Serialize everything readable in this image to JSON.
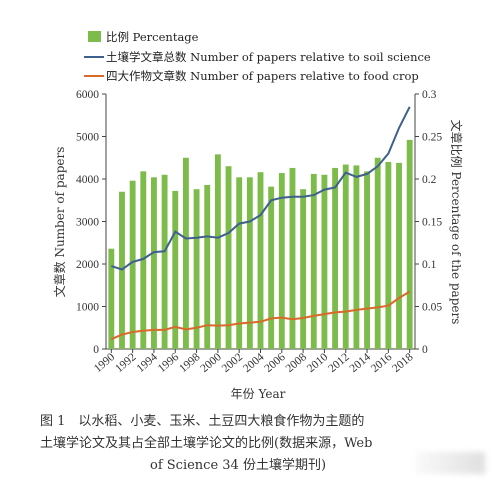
{
  "chart_data": {
    "type": "bar+line",
    "x": [
      1990,
      1991,
      1992,
      1993,
      1994,
      1995,
      1996,
      1997,
      1998,
      1999,
      2000,
      2001,
      2002,
      2003,
      2004,
      2005,
      2006,
      2007,
      2008,
      2009,
      2010,
      2011,
      2012,
      2013,
      2014,
      2015,
      2016,
      2017,
      2018
    ],
    "x_tick_labels": [
      "1990",
      "1992",
      "1994",
      "1996",
      "1998",
      "2000",
      "2002",
      "2004",
      "2006",
      "2008",
      "2010",
      "2012",
      "2014",
      "2016",
      "2018"
    ],
    "xlabel": "年份 Year",
    "ylabel_left": "文章数 Number of papers",
    "ylabel_right": "文章比例 Percentage of the papers",
    "ylim_left": [
      0,
      6000
    ],
    "ylim_right": [
      0,
      0.3
    ],
    "yticks_left": [
      0,
      1000,
      2000,
      3000,
      4000,
      5000,
      6000
    ],
    "yticks_right": [
      "0",
      "0.05",
      "0.1",
      "0.15",
      "0.2",
      "0.25",
      "0.3"
    ],
    "series": [
      {
        "name": "比例 Percentage",
        "kind": "bar",
        "axis": "right",
        "color": "#7dbb4a",
        "values": [
          0.118,
          0.185,
          0.198,
          0.209,
          0.202,
          0.205,
          0.186,
          0.225,
          0.188,
          0.193,
          0.229,
          0.215,
          0.202,
          0.202,
          0.208,
          0.191,
          0.207,
          0.213,
          0.188,
          0.206,
          0.205,
          0.213,
          0.217,
          0.216,
          0.209,
          0.225,
          0.22,
          0.219,
          0.246
        ]
      },
      {
        "name": "土壤学文章总数 Number of papers relative to soil science",
        "kind": "line",
        "axis": "left",
        "color": "#3f5f8f",
        "values": [
          1950,
          1870,
          2050,
          2120,
          2280,
          2300,
          2760,
          2600,
          2620,
          2650,
          2620,
          2730,
          2950,
          3000,
          3150,
          3500,
          3560,
          3580,
          3580,
          3620,
          3750,
          3800,
          4150,
          4050,
          4120,
          4300,
          4600,
          5200,
          5700
        ]
      },
      {
        "name": "四大作物文章数 Number of papers relative to food crop",
        "kind": "line",
        "axis": "left",
        "color": "#d9692b",
        "values": [
          230,
          340,
          400,
          430,
          450,
          450,
          520,
          460,
          500,
          560,
          550,
          560,
          600,
          620,
          640,
          720,
          740,
          700,
          730,
          780,
          820,
          860,
          880,
          920,
          950,
          980,
          1020,
          1200,
          1350
        ]
      }
    ]
  },
  "caption": {
    "line1": "图 1　以水稻、小麦、玉米、土豆四大粮食作物为主题的",
    "line2": "土壤学论文及其占全部土壤学论文的比例(数据来源，Web",
    "line3": "of Science 34 份土壤学期刊)"
  }
}
